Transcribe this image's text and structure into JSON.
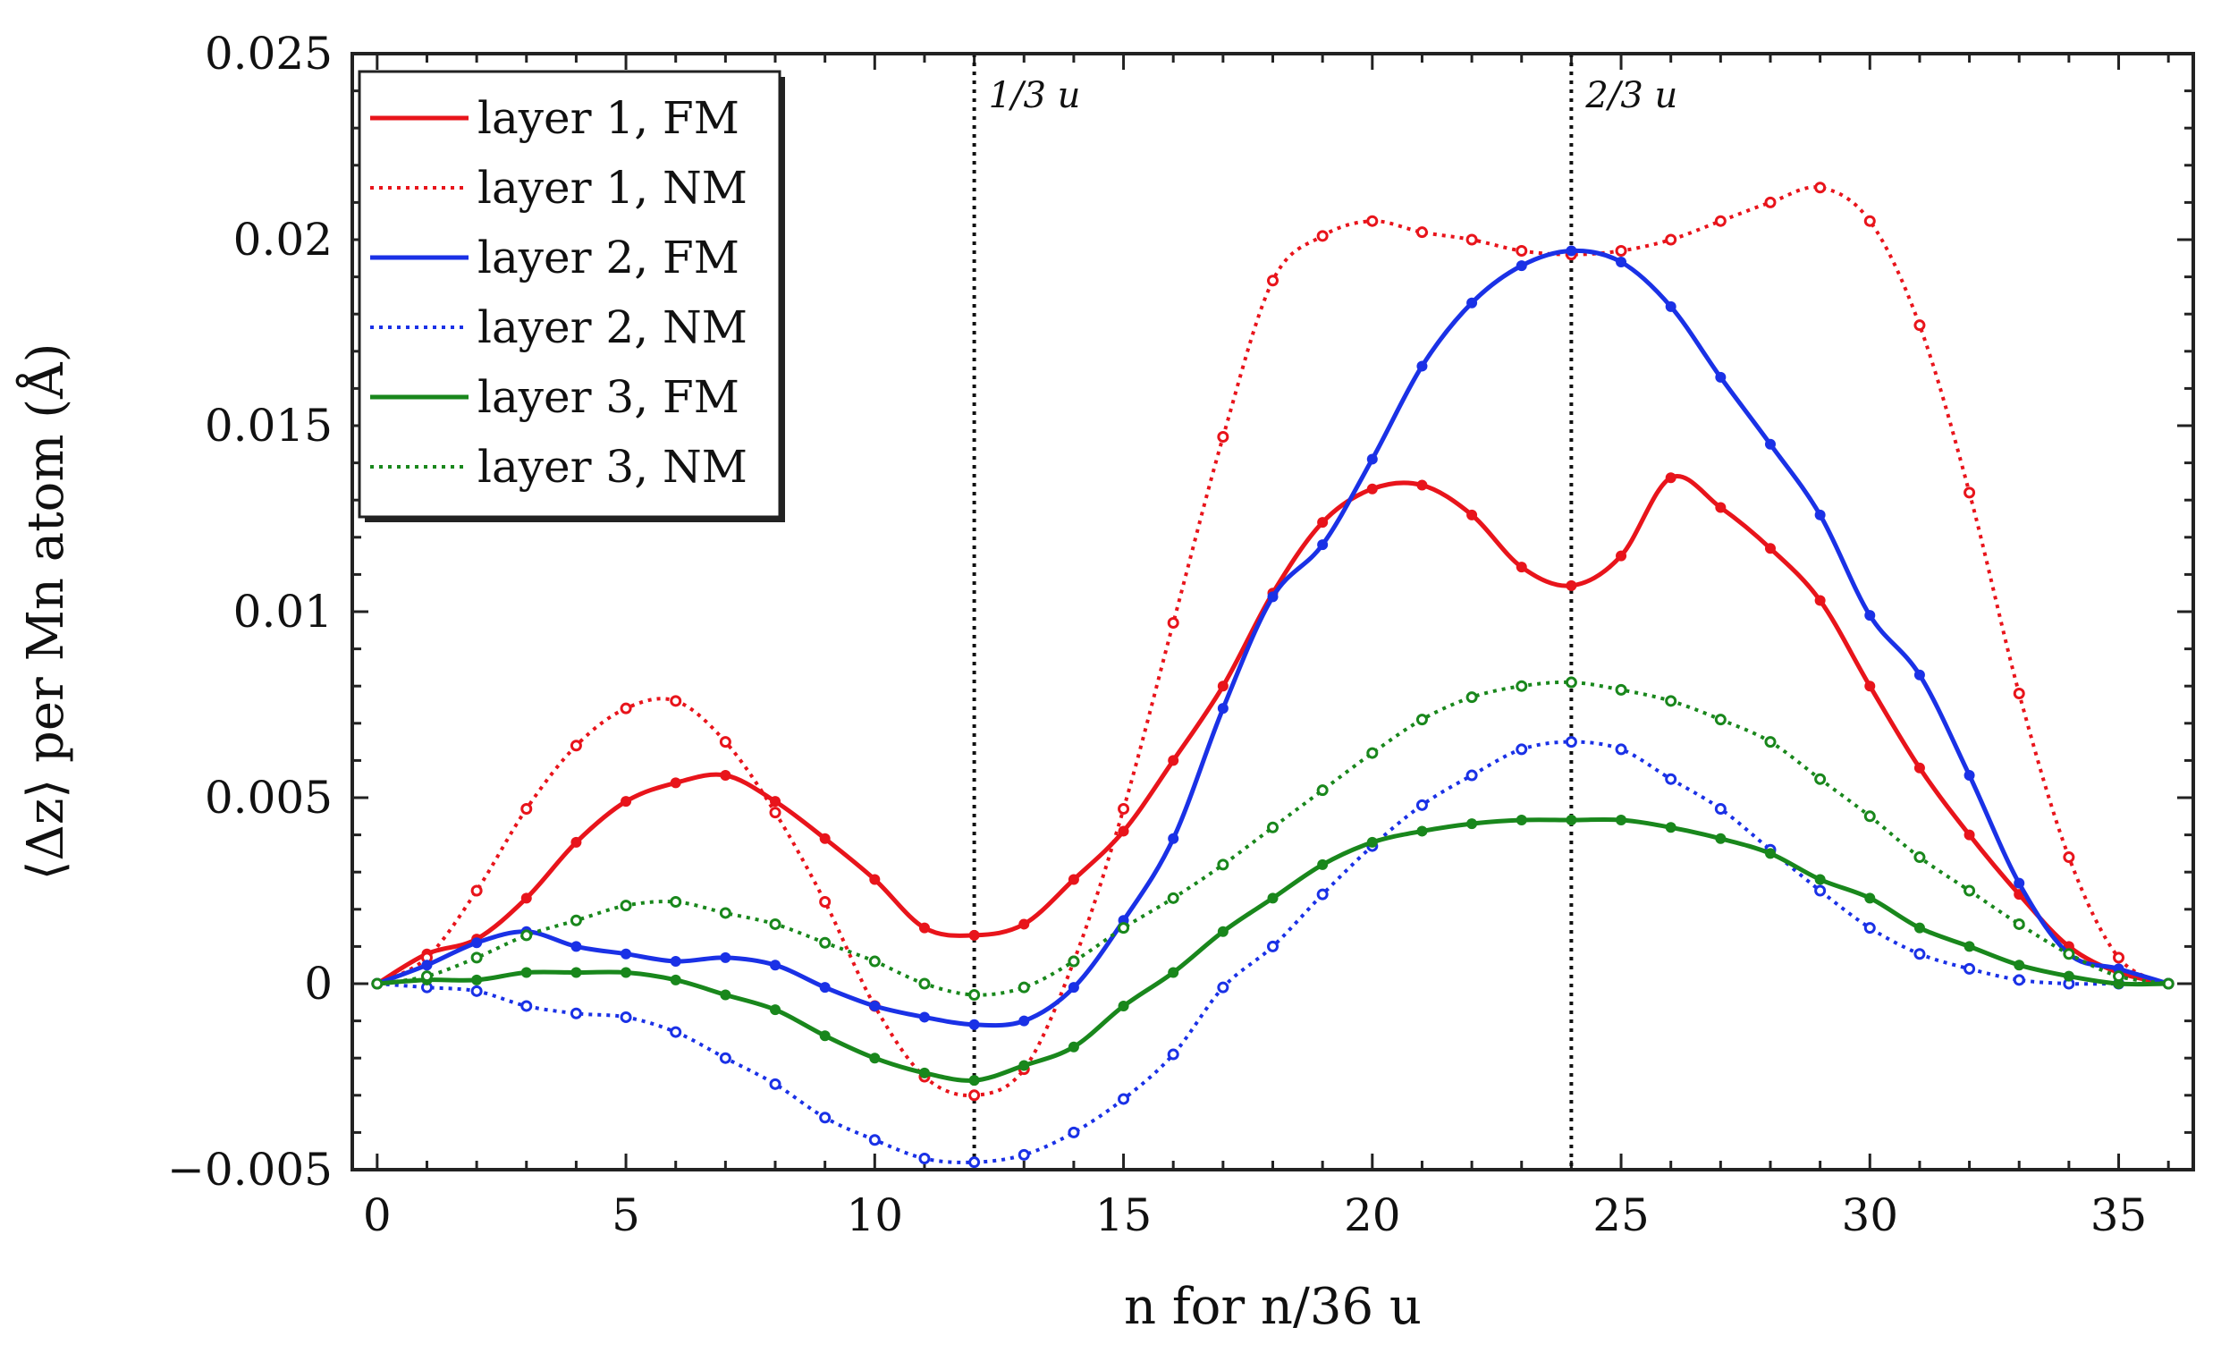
{
  "chart_data": {
    "type": "line",
    "title": "",
    "xlabel": "n for n/36 u",
    "ylabel": "⟨Δz⟩ per Mn atom (Å)",
    "xlim": [
      -0.5,
      36.5
    ],
    "ylim": [
      -0.005,
      0.025
    ],
    "xticks": [
      "0",
      "5",
      "10",
      "15",
      "20",
      "25",
      "30",
      "35"
    ],
    "yticks": [
      "−0.005",
      "0",
      "0.005",
      "0.01",
      "0.015",
      "0.02",
      "0.025"
    ],
    "vlines": [
      {
        "x": 12,
        "label": "1/3 u"
      },
      {
        "x": 24,
        "label": "2/3 u"
      }
    ],
    "legend_position": "top-left",
    "x": [
      0,
      1,
      2,
      3,
      4,
      5,
      6,
      7,
      8,
      9,
      10,
      11,
      12,
      13,
      14,
      15,
      16,
      17,
      18,
      19,
      20,
      21,
      22,
      23,
      24,
      25,
      26,
      27,
      28,
      29,
      30,
      31,
      32,
      33,
      34,
      35,
      36
    ],
    "series": [
      {
        "name": "layer 1, FM",
        "color": "#e8141b",
        "style": "solid",
        "values": [
          0,
          0.0008,
          0.0012,
          0.0023,
          0.0038,
          0.0049,
          0.0054,
          0.0056,
          0.0049,
          0.0039,
          0.0028,
          0.0015,
          0.0013,
          0.0016,
          0.0028,
          0.0041,
          0.006,
          0.008,
          0.0105,
          0.0124,
          0.0133,
          0.0134,
          0.0126,
          0.0112,
          0.0107,
          0.0115,
          0.0136,
          0.0128,
          0.0117,
          0.0103,
          0.008,
          0.0058,
          0.004,
          0.0024,
          0.001,
          0.0003,
          0
        ]
      },
      {
        "name": "layer 1, NM",
        "color": "#e8141b",
        "style": "dotted",
        "values": [
          0,
          0.0007,
          0.0025,
          0.0047,
          0.0064,
          0.0074,
          0.0076,
          0.0065,
          0.0046,
          0.0022,
          -0.0006,
          -0.0025,
          -0.003,
          -0.0023,
          0.0006,
          0.0047,
          0.0097,
          0.0147,
          0.0189,
          0.0201,
          0.0205,
          0.0202,
          0.02,
          0.0197,
          0.0196,
          0.0197,
          0.02,
          0.0205,
          0.021,
          0.0214,
          0.0205,
          0.0177,
          0.0132,
          0.0078,
          0.0034,
          0.0007,
          0
        ]
      },
      {
        "name": "layer 2, FM",
        "color": "#1a31e6",
        "style": "solid",
        "values": [
          0,
          0.0005,
          0.0011,
          0.0014,
          0.001,
          0.0008,
          0.0006,
          0.0007,
          0.0005,
          -0.0001,
          -0.0006,
          -0.0009,
          -0.0011,
          -0.001,
          -0.0001,
          0.0017,
          0.0039,
          0.0074,
          0.0104,
          0.0118,
          0.0141,
          0.0166,
          0.0183,
          0.0193,
          0.0197,
          0.0194,
          0.0182,
          0.0163,
          0.0145,
          0.0126,
          0.0099,
          0.0083,
          0.0056,
          0.0027,
          0.0008,
          0.0004,
          0
        ]
      },
      {
        "name": "layer 2, NM",
        "color": "#1a31e6",
        "style": "dotted",
        "values": [
          0,
          -0.0001,
          -0.0002,
          -0.0006,
          -0.0008,
          -0.0009,
          -0.0013,
          -0.002,
          -0.0027,
          -0.0036,
          -0.0042,
          -0.0047,
          -0.0048,
          -0.0046,
          -0.004,
          -0.0031,
          -0.0019,
          -0.0001,
          0.001,
          0.0024,
          0.0037,
          0.0048,
          0.0056,
          0.0063,
          0.0065,
          0.0063,
          0.0055,
          0.0047,
          0.0036,
          0.0025,
          0.0015,
          0.0008,
          0.0004,
          0.0001,
          0,
          0,
          0
        ]
      },
      {
        "name": "layer 3, FM",
        "color": "#19871c",
        "style": "solid",
        "values": [
          0,
          0.0001,
          0.0001,
          0.0003,
          0.0003,
          0.0003,
          0.0001,
          -0.0003,
          -0.0007,
          -0.0014,
          -0.002,
          -0.0024,
          -0.0026,
          -0.0022,
          -0.0017,
          -0.0006,
          0.0003,
          0.0014,
          0.0023,
          0.0032,
          0.0038,
          0.0041,
          0.0043,
          0.0044,
          0.0044,
          0.0044,
          0.0042,
          0.0039,
          0.0035,
          0.0028,
          0.0023,
          0.0015,
          0.001,
          0.0005,
          0.0002,
          0,
          0
        ]
      },
      {
        "name": "layer 3, NM",
        "color": "#19871c",
        "style": "dotted",
        "values": [
          0,
          0.0002,
          0.0007,
          0.0013,
          0.0017,
          0.0021,
          0.0022,
          0.0019,
          0.0016,
          0.0011,
          0.0006,
          0,
          -0.0003,
          -0.0001,
          0.0006,
          0.0015,
          0.0023,
          0.0032,
          0.0042,
          0.0052,
          0.0062,
          0.0071,
          0.0077,
          0.008,
          0.0081,
          0.0079,
          0.0076,
          0.0071,
          0.0065,
          0.0055,
          0.0045,
          0.0034,
          0.0025,
          0.0016,
          0.0008,
          0.0002,
          0
        ]
      }
    ]
  }
}
